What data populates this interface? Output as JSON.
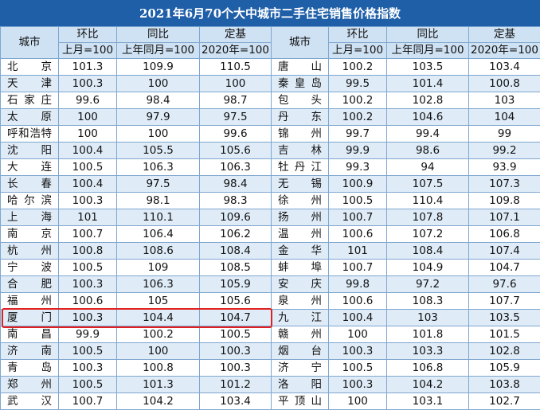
{
  "title": "2021年6月70个大中城市二手住宅销售价格指数",
  "headers": {
    "city": "城市",
    "mom": "环比",
    "yoy": "同比",
    "fixed": "定基",
    "mom_sub": "上月=100",
    "yoy_sub": "上年同月=100",
    "fixed_sub": "2020年=100"
  },
  "rows": [
    {
      "l": [
        "北　京",
        "101.3",
        "109.9",
        "110.5"
      ],
      "r": [
        "唐　山",
        "100.2",
        "103.5",
        "103.4"
      ]
    },
    {
      "l": [
        "天　津",
        "100.3",
        "100",
        "100"
      ],
      "r": [
        "秦皇岛",
        "99.5",
        "101.4",
        "100.8"
      ]
    },
    {
      "l": [
        "石家庄",
        "99.6",
        "98.4",
        "98.7"
      ],
      "r": [
        "包　头",
        "100.2",
        "102.8",
        "103"
      ]
    },
    {
      "l": [
        "太　原",
        "100",
        "97.9",
        "97.5"
      ],
      "r": [
        "丹　东",
        "100.2",
        "104.6",
        "104"
      ]
    },
    {
      "l": [
        "呼和浩特",
        "100",
        "100",
        "99.6"
      ],
      "r": [
        "锦　州",
        "99.7",
        "99.4",
        "99"
      ]
    },
    {
      "l": [
        "沈　阳",
        "100.4",
        "105.5",
        "105.6"
      ],
      "r": [
        "吉　林",
        "99.9",
        "98.6",
        "99.2"
      ]
    },
    {
      "l": [
        "大　连",
        "100.5",
        "106.3",
        "106.3"
      ],
      "r": [
        "牡丹江",
        "99.3",
        "94",
        "93.9"
      ]
    },
    {
      "l": [
        "长　春",
        "100.4",
        "97.5",
        "98.4"
      ],
      "r": [
        "无　锡",
        "100.9",
        "107.5",
        "107.3"
      ]
    },
    {
      "l": [
        "哈尔滨",
        "100.3",
        "98.1",
        "98.3"
      ],
      "r": [
        "徐　州",
        "100.5",
        "110.4",
        "109.8"
      ]
    },
    {
      "l": [
        "上　海",
        "101",
        "110.1",
        "109.6"
      ],
      "r": [
        "扬　州",
        "100.7",
        "107.8",
        "107.1"
      ]
    },
    {
      "l": [
        "南　京",
        "100.7",
        "106.4",
        "106.2"
      ],
      "r": [
        "温　州",
        "100.6",
        "107.2",
        "106.8"
      ]
    },
    {
      "l": [
        "杭　州",
        "100.8",
        "108.6",
        "108.4"
      ],
      "r": [
        "金　华",
        "101",
        "108.4",
        "107.4"
      ]
    },
    {
      "l": [
        "宁　波",
        "100.5",
        "109",
        "108.5"
      ],
      "r": [
        "蚌　埠",
        "100.7",
        "104.9",
        "104.7"
      ]
    },
    {
      "l": [
        "合　肥",
        "100.3",
        "106.3",
        "105.9"
      ],
      "r": [
        "安　庆",
        "99.8",
        "97.2",
        "97.6"
      ]
    },
    {
      "l": [
        "福　州",
        "100.6",
        "105",
        "105.6"
      ],
      "r": [
        "泉　州",
        "100.6",
        "108.3",
        "107.7"
      ]
    },
    {
      "l": [
        "厦　门",
        "100.3",
        "104.4",
        "104.7"
      ],
      "r": [
        "九　江",
        "100.4",
        "103",
        "103.5"
      ]
    },
    {
      "l": [
        "南　昌",
        "99.9",
        "100.2",
        "100.5"
      ],
      "r": [
        "赣　州",
        "100",
        "101.8",
        "101.5"
      ]
    },
    {
      "l": [
        "济　南",
        "100.5",
        "100",
        "100.3"
      ],
      "r": [
        "烟　台",
        "100.3",
        "103.3",
        "102.8"
      ]
    },
    {
      "l": [
        "青　岛",
        "100.3",
        "100.8",
        "100.3"
      ],
      "r": [
        "济　宁",
        "100.5",
        "106.8",
        "105.9"
      ]
    },
    {
      "l": [
        "郑　州",
        "100.5",
        "101.3",
        "101.2"
      ],
      "r": [
        "洛　阳",
        "100.3",
        "104.2",
        "103.8"
      ]
    },
    {
      "l": [
        "武　汉",
        "100.7",
        "104.2",
        "103.4"
      ],
      "r": [
        "平顶山",
        "100",
        "103.1",
        "102.7"
      ]
    }
  ]
}
